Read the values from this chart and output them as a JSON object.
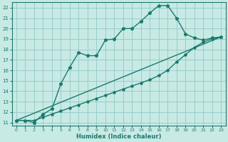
{
  "xlabel": "Humidex (Indice chaleur)",
  "bg_color": "#c8eae4",
  "grid_color": "#99cccc",
  "line_color": "#1a7a6e",
  "xlim": [
    -0.5,
    23.5
  ],
  "ylim": [
    10.7,
    22.5
  ],
  "xticks": [
    0,
    1,
    2,
    3,
    4,
    5,
    6,
    7,
    8,
    9,
    10,
    11,
    12,
    13,
    14,
    15,
    16,
    17,
    18,
    19,
    20,
    21,
    22,
    23
  ],
  "yticks": [
    11,
    12,
    13,
    14,
    15,
    16,
    17,
    18,
    19,
    20,
    21,
    22
  ],
  "line1_x": [
    0,
    1,
    2,
    3,
    4,
    5,
    6,
    7,
    8,
    9,
    10,
    11,
    12,
    13,
    14,
    15,
    16,
    17,
    18,
    19,
    20,
    21,
    22,
    23
  ],
  "line1_y": [
    11.2,
    11.2,
    11.0,
    11.8,
    12.3,
    14.7,
    16.3,
    17.7,
    17.4,
    17.4,
    18.9,
    19.0,
    20.0,
    20.0,
    20.7,
    21.5,
    22.2,
    22.2,
    21.0,
    19.5,
    19.1,
    18.9,
    19.1,
    19.2
  ],
  "line2_x": [
    0,
    1,
    2,
    3,
    4,
    5,
    6,
    7,
    8,
    9,
    10,
    11,
    12,
    13,
    14,
    15,
    16,
    17,
    18,
    19,
    20,
    21,
    22,
    23
  ],
  "line2_y": [
    11.2,
    11.2,
    11.2,
    11.5,
    11.8,
    12.1,
    12.4,
    12.7,
    13.0,
    13.3,
    13.6,
    13.9,
    14.2,
    14.5,
    14.8,
    15.1,
    15.5,
    16.0,
    16.8,
    17.5,
    18.2,
    18.7,
    19.0,
    19.2
  ],
  "line3_x": [
    0,
    23
  ],
  "line3_y": [
    11.2,
    19.2
  ]
}
